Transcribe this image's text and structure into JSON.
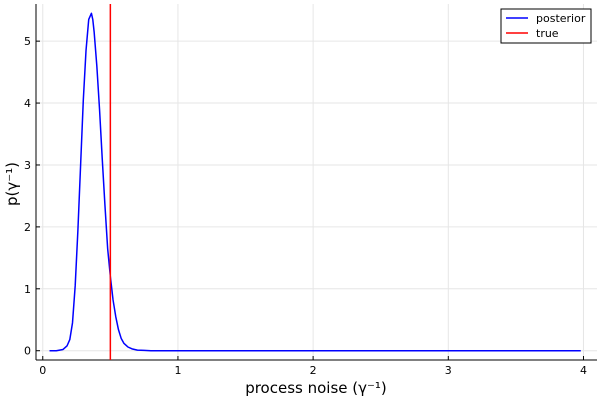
{
  "chart_data": {
    "type": "line",
    "xlabel": "process noise (γ⁻¹)",
    "ylabel": "p(γ⁻¹)",
    "xlim": [
      -0.05,
      4.1
    ],
    "ylim": [
      -0.15,
      5.6
    ],
    "grid": true,
    "legend_position": "top-right",
    "x_ticks": [
      0,
      1,
      2,
      3,
      4
    ],
    "x_tick_labels": [
      "0",
      "1",
      "2",
      "3",
      "4"
    ],
    "y_ticks": [
      0,
      1,
      2,
      3,
      4,
      5
    ],
    "y_tick_labels": [
      "0",
      "1",
      "2",
      "3",
      "4",
      "5"
    ],
    "series": [
      {
        "name": "posterior",
        "color": "#0000ff",
        "x": [
          0.05,
          0.1,
          0.15,
          0.18,
          0.2,
          0.22,
          0.24,
          0.26,
          0.28,
          0.3,
          0.32,
          0.34,
          0.36,
          0.37,
          0.38,
          0.4,
          0.42,
          0.44,
          0.46,
          0.48,
          0.5,
          0.52,
          0.54,
          0.56,
          0.58,
          0.6,
          0.63,
          0.66,
          0.7,
          0.75,
          0.8,
          0.9,
          1.0,
          1.5,
          2.0,
          2.5,
          3.0,
          3.5,
          3.98
        ],
        "y": [
          0.0,
          0.0,
          0.02,
          0.08,
          0.18,
          0.45,
          1.05,
          1.95,
          3.0,
          4.05,
          4.85,
          5.35,
          5.45,
          5.35,
          5.15,
          4.6,
          3.9,
          3.1,
          2.35,
          1.65,
          1.2,
          0.82,
          0.55,
          0.34,
          0.2,
          0.12,
          0.06,
          0.03,
          0.01,
          0.005,
          0.0,
          0.0,
          0.0,
          0.0,
          0.0,
          0.0,
          0.0,
          0.0,
          0.0
        ]
      },
      {
        "name": "true",
        "color": "#ff0000",
        "vline_x": 0.5
      }
    ]
  }
}
